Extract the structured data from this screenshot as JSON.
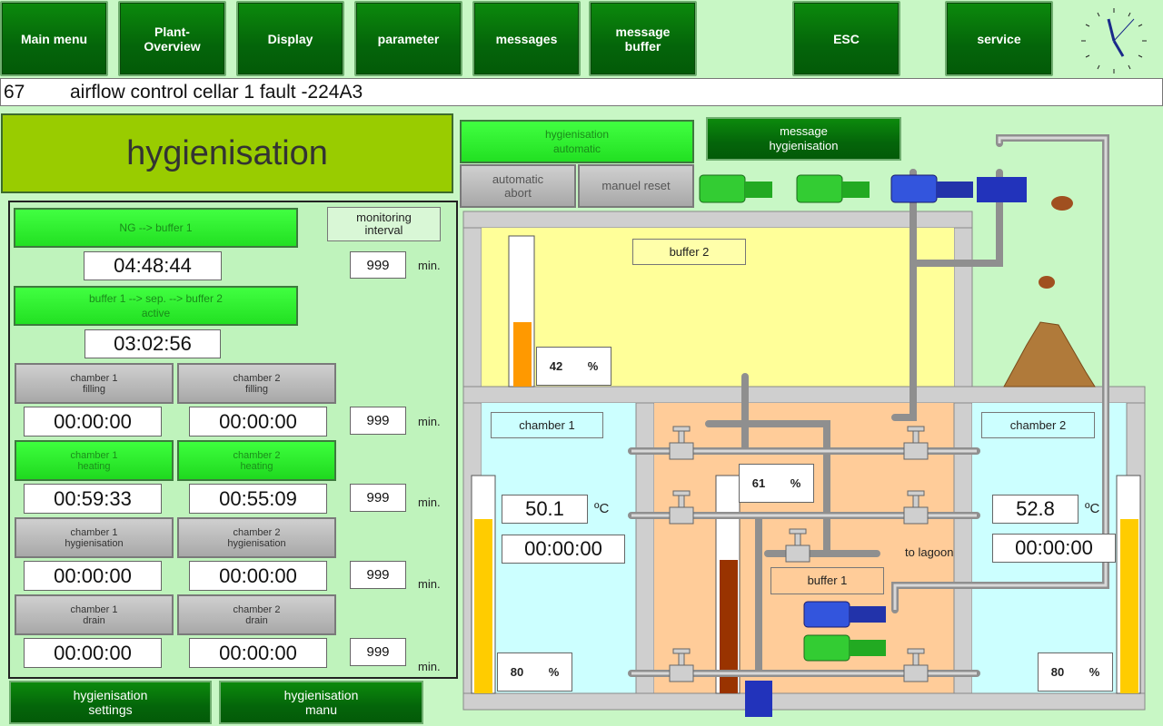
{
  "nav": {
    "main_menu": "Main menu",
    "plant_overview": "Plant-\nOverview",
    "display": "Display",
    "parameter": "parameter",
    "messages": "messages",
    "message_buffer": "message\nbuffer",
    "esc": "ESC",
    "service": "service"
  },
  "message": {
    "number": "67",
    "text": "airflow control cellar 1 fault -224A3"
  },
  "title": "hygienisation",
  "left": {
    "ng_buffer1": "NG   -->     buffer 1",
    "ng_time": "04:48:44",
    "monitoring": "monitoring\ninterval",
    "monitor_val": "999",
    "unit": "min.",
    "sep": "buffer 1 -->  sep.  -->  buffer 2\nactive",
    "sep_time": "03:02:56",
    "rows": [
      {
        "c1": "chamber 1\nfilling",
        "c2": "chamber 2\nfilling",
        "t1": "00:00:00",
        "t2": "00:00:00",
        "val": "999"
      },
      {
        "c1": "chamber 1\nheating",
        "c2": "chamber 2\nheating",
        "t1": "00:59:33",
        "t2": "00:55:09",
        "val": "999"
      },
      {
        "c1": "chamber 1\nhygienisation",
        "c2": "chamber 2\nhygienisation",
        "t1": "00:00:00",
        "t2": "00:00:00",
        "val": "999"
      },
      {
        "c1": "chamber 1\ndrain",
        "c2": "chamber 2\ndrain",
        "t1": "00:00:00",
        "t2": "00:00:00",
        "val": "999"
      }
    ]
  },
  "bottom": {
    "settings": "hygienisation\nsettings",
    "manu": "hygienisation\nmanu"
  },
  "plant": {
    "hyg_auto": "hygienisation\nautomatic",
    "msg_hyg": "message\nhygienisation",
    "auto_abort": "automatic\nabort",
    "manuel_reset": "manuel reset",
    "buffer2": "buffer 2",
    "buffer2_level": "42",
    "chamber1": "chamber 1",
    "chamber2": "chamber 2",
    "c1_temp": "50.1",
    "c2_temp": "52.8",
    "temp_unit": "ºC",
    "c1_time": "00:00:00",
    "c2_time": "00:00:00",
    "c1_level": "80",
    "c2_level": "80",
    "buffer1": "buffer 1",
    "buffer1_level": "61",
    "to_lagoon": "to lagoon",
    "pct": "%"
  },
  "colors": {
    "active_green": "#22e022",
    "nav_green": "#04650a",
    "title_green": "#99cc00"
  }
}
